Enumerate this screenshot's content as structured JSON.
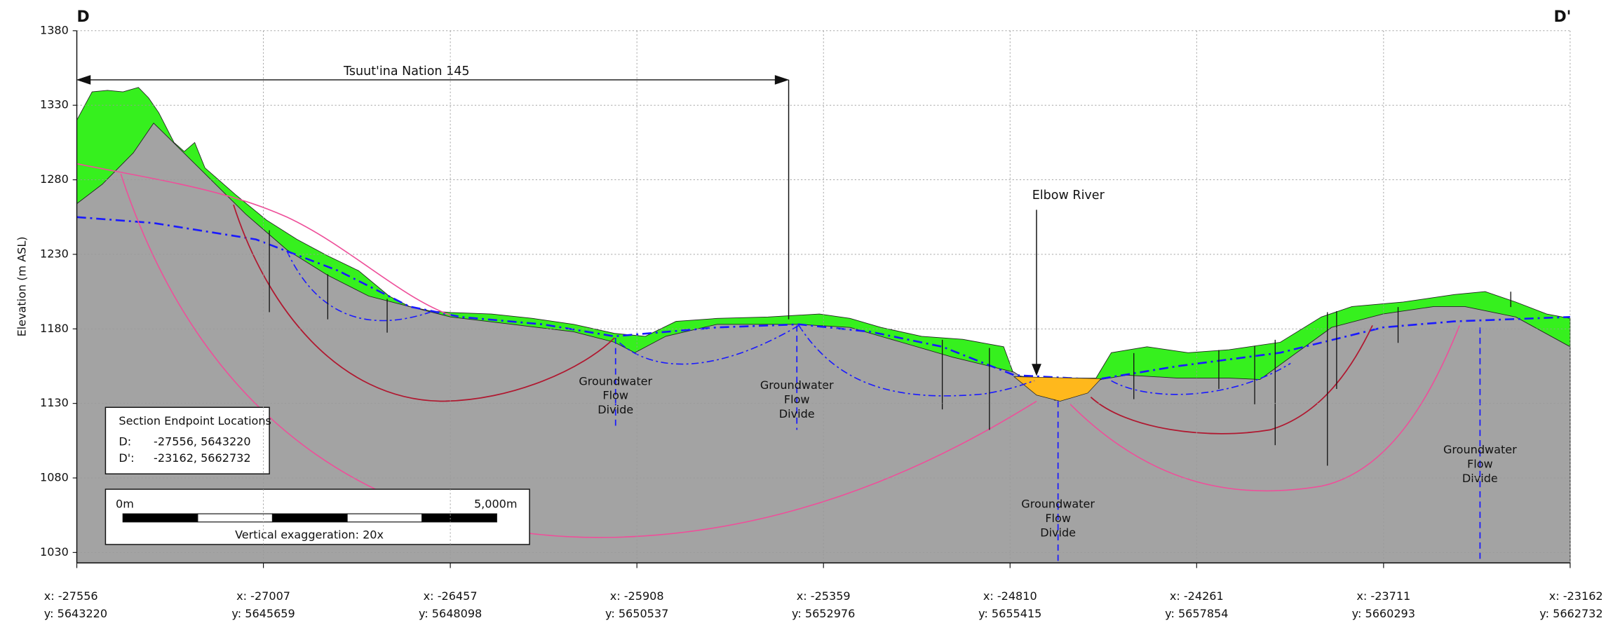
{
  "chart_data": {
    "type": "cross-section",
    "title_left": "D",
    "title_right": "D'",
    "y_label": "Elevation  (m ASL)",
    "ylim": [
      1023,
      1380
    ],
    "yticks": [
      1030,
      1080,
      1130,
      1180,
      1230,
      1280,
      1330,
      1380
    ],
    "xlim": [
      -27556,
      -23162
    ],
    "xticks": [
      {
        "value": -27556,
        "label": "x: -27556"
      },
      {
        "value": -27007,
        "label": "x: -27007"
      },
      {
        "value": -26457,
        "label": "x: -26457"
      },
      {
        "value": -25908,
        "label": "x: -25908"
      },
      {
        "value": -25359,
        "label": "x: -25359"
      },
      {
        "value": -24810,
        "label": "x: -24810"
      },
      {
        "value": -24261,
        "label": "x: -24261"
      },
      {
        "value": -23711,
        "label": "x: -23711"
      },
      {
        "value": -23162,
        "label": "x: -23162"
      }
    ],
    "xtick_sublabels": [
      "y: 5643220",
      "y: 5645659",
      "y: 5648098",
      "y: 5650537",
      "y: 5652976",
      "y: 5655415",
      "y: 5657854",
      "y: 5660293",
      "y: 5662732"
    ],
    "grid": true,
    "series": [
      {
        "style": "fill",
        "color": "#36f01e",
        "x": [
          -27556,
          -27511,
          -27466,
          -27420,
          -27375,
          -27345,
          -27315,
          -27270,
          -27240,
          -27209,
          -27179,
          -27089,
          -26998,
          -26908,
          -26818,
          -26727,
          -26637,
          -26577,
          -26516,
          -26456,
          -26336,
          -26215,
          -26094,
          -25974,
          -25883,
          -25793,
          -25672,
          -25522,
          -25371,
          -25281,
          -25190,
          -25070,
          -24949,
          -24829,
          -24798,
          -24738,
          -24557,
          -24512,
          -24407,
          -24286,
          -24166,
          -24015,
          -23894,
          -23804,
          -23653,
          -23503,
          -23412,
          -23322,
          -23231,
          -23162
        ],
        "values": [
          1320,
          1339,
          1340,
          1339,
          1342,
          1335,
          1325,
          1305,
          1299,
          1305,
          1288,
          1270,
          1253,
          1240,
          1229,
          1219,
          1202,
          1195,
          1192,
          1191,
          1190,
          1187,
          1183,
          1177,
          1175,
          1185,
          1187,
          1188,
          1190,
          1187,
          1181,
          1175,
          1173,
          1168,
          1149,
          1147,
          1147,
          1164,
          1168,
          1164,
          1166,
          1171,
          1188,
          1195,
          1198,
          1203,
          1205,
          1198,
          1190,
          1187
        ]
      },
      {
        "style": "fill",
        "color": "#a3a3a3",
        "x": [
          -27556,
          -27481,
          -27390,
          -27330,
          -27285,
          -27179,
          -27059,
          -26938,
          -26818,
          -26697,
          -26577,
          -26456,
          -26275,
          -26094,
          -25974,
          -25914,
          -25823,
          -25672,
          -25431,
          -25281,
          -25130,
          -24979,
          -24798,
          -24738,
          -24678,
          -24618,
          -24543,
          -24467,
          -24316,
          -24166,
          -24075,
          -23985,
          -23864,
          -23713,
          -23563,
          -23472,
          -23322,
          -23162
        ],
        "values": [
          1264,
          1277,
          1298,
          1318,
          1308,
          1284,
          1257,
          1233,
          1216,
          1202,
          1195,
          1188,
          1183,
          1178,
          1171,
          1164,
          1175,
          1183,
          1183,
          1181,
          1171,
          1161,
          1151,
          1142,
          1132,
          1137,
          1146,
          1149,
          1147,
          1147,
          1146,
          1161,
          1181,
          1190,
          1195,
          1195,
          1188,
          1168
        ]
      },
      {
        "style": "dash-dot",
        "color": "#1a1aff",
        "x": [
          -27556,
          -27330,
          -27029,
          -26787,
          -26577,
          -26426,
          -26185,
          -25974,
          -25672,
          -25431,
          -25220,
          -25009,
          -24798,
          -24557,
          -24316,
          -24015,
          -23713,
          -23503,
          -23162
        ],
        "values": [
          1255,
          1251,
          1240,
          1219,
          1195,
          1188,
          1183,
          1175,
          1181,
          1183,
          1178,
          1168,
          1149,
          1146,
          1155,
          1164,
          1181,
          1185,
          1188
        ]
      }
    ],
    "annotations": {
      "boundary": "Tsuut'ina Nation 145",
      "river": "Elbow River",
      "divides": [
        [
          "Groundwater",
          "Flow",
          "Divide"
        ],
        [
          "Groundwater",
          "Flow",
          "Divide"
        ],
        [
          "Groundwater",
          "Flow",
          "Divide"
        ],
        [
          "Groundwater",
          "Flow",
          "Divide"
        ]
      ]
    },
    "endpoint_box": {
      "title": "Section Endpoint Locations",
      "rows": [
        [
          "D:",
          "-27556, 5643220"
        ],
        [
          "D':",
          "-23162, 5662732"
        ]
      ]
    },
    "scale_bar": {
      "start": "0m",
      "end": "5,000m",
      "note": "Vertical exaggeration: 20x"
    }
  }
}
